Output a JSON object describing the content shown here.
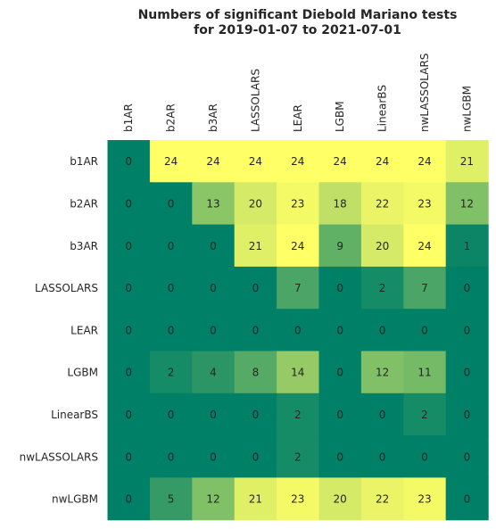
{
  "chart_data": {
    "type": "heatmap",
    "title_line1": "Numbers of significant Diebold Mariano tests",
    "title_line2": "for 2019-01-07 to 2021-07-01",
    "columns": [
      "b1AR",
      "b2AR",
      "b3AR",
      "LASSOLARS",
      "LEAR",
      "LGBM",
      "LinearBS",
      "nwLASSOLARS",
      "nwLGBM"
    ],
    "rows": [
      "b1AR",
      "b2AR",
      "b3AR",
      "LASSOLARS",
      "LEAR",
      "LGBM",
      "LinearBS",
      "nwLASSOLARS",
      "nwLGBM"
    ],
    "values": [
      [
        0,
        24,
        24,
        24,
        24,
        24,
        24,
        24,
        21
      ],
      [
        0,
        0,
        13,
        20,
        23,
        18,
        22,
        23,
        12
      ],
      [
        0,
        0,
        0,
        21,
        24,
        9,
        20,
        24,
        1
      ],
      [
        0,
        0,
        0,
        0,
        7,
        0,
        2,
        7,
        0
      ],
      [
        0,
        0,
        0,
        0,
        0,
        0,
        0,
        0,
        0
      ],
      [
        0,
        2,
        4,
        8,
        14,
        0,
        12,
        11,
        0
      ],
      [
        0,
        0,
        0,
        0,
        2,
        0,
        0,
        2,
        0
      ],
      [
        0,
        0,
        0,
        0,
        2,
        0,
        0,
        0,
        0
      ],
      [
        0,
        5,
        12,
        21,
        23,
        20,
        22,
        23,
        0
      ]
    ],
    "value_range": [
      0,
      24
    ],
    "colormap": "summer",
    "colors": {
      "low": "#008066",
      "high": "#ffff66",
      "text": "#262626"
    },
    "x_tick_position": "top",
    "x_tick_rotation": 90,
    "grid": false,
    "colorbar": false
  }
}
